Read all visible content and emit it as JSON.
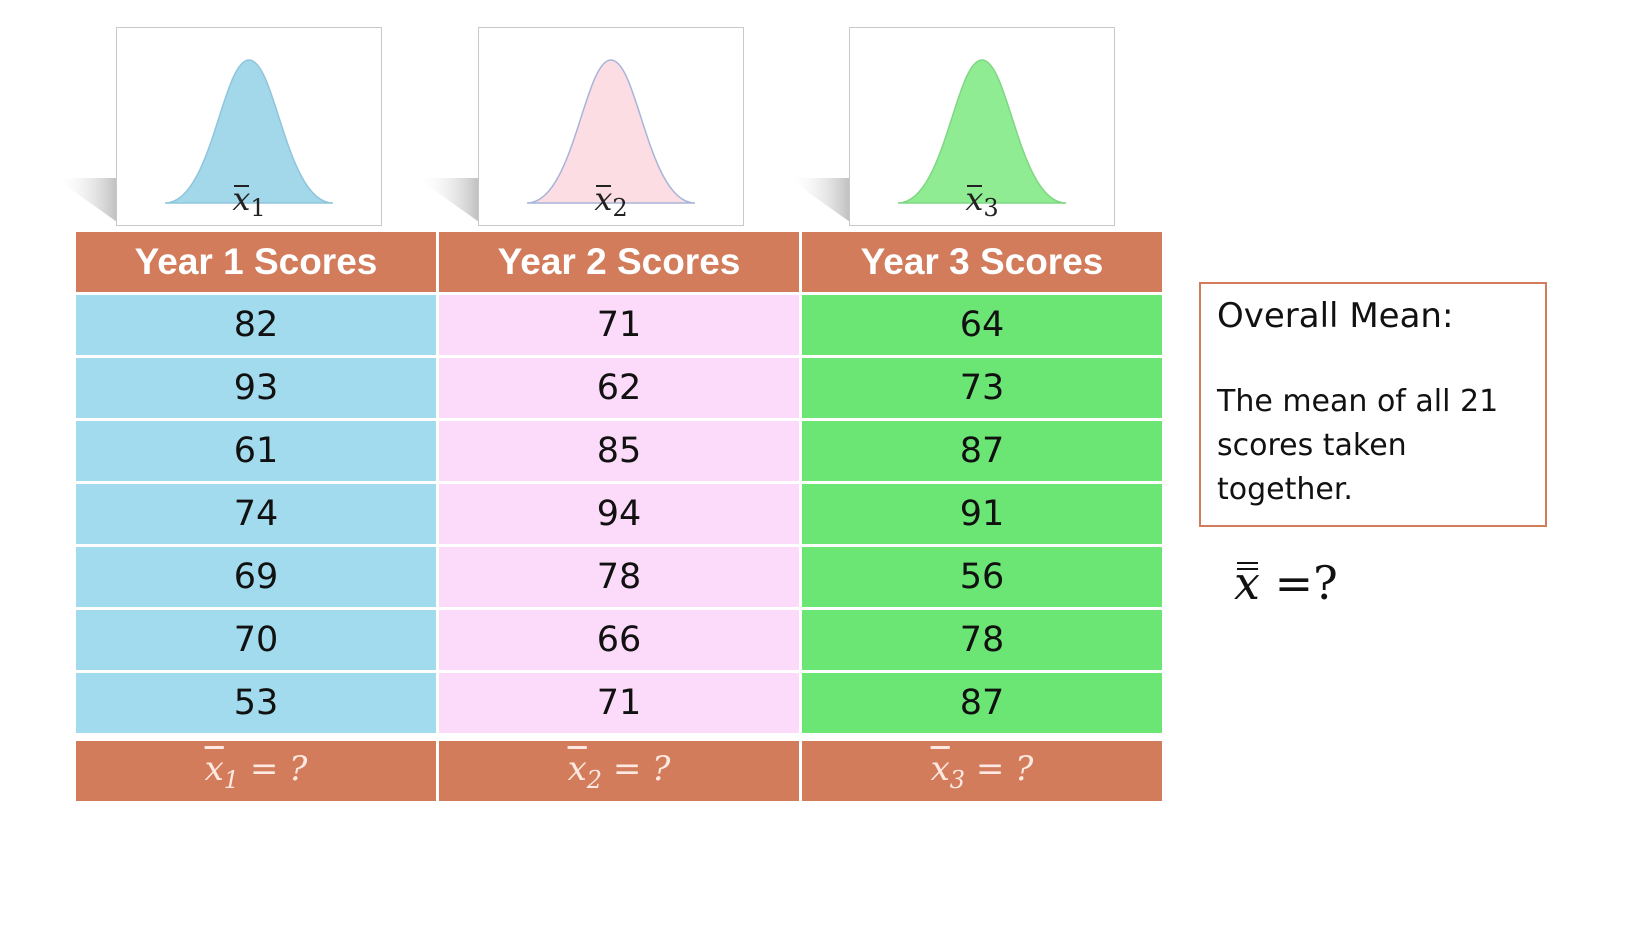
{
  "curves": [
    {
      "mean_var": "x",
      "subscript": "1",
      "fill": "#a3d8eb"
    },
    {
      "mean_var": "x",
      "subscript": "2",
      "fill": "#fcdde3"
    },
    {
      "mean_var": "x",
      "subscript": "3",
      "fill": "#90ec93"
    }
  ],
  "table": {
    "headers": [
      "Year 1 Scores",
      "Year 2 Scores",
      "Year 3 Scores"
    ],
    "rows": [
      [
        "82",
        "71",
        "64"
      ],
      [
        "93",
        "62",
        "73"
      ],
      [
        "61",
        "85",
        "87"
      ],
      [
        "74",
        "94",
        "91"
      ],
      [
        "69",
        "78",
        "56"
      ],
      [
        "70",
        "66",
        "78"
      ],
      [
        "53",
        "71",
        "87"
      ]
    ],
    "footer": [
      {
        "var": "x",
        "sub": "1",
        "rest": " = ?"
      },
      {
        "var": "x",
        "sub": "2",
        "rest": " = ?"
      },
      {
        "var": "x",
        "sub": "3",
        "rest": " = ?"
      }
    ]
  },
  "colors": {
    "header": "#d27c5b",
    "col1": "#a2dbee",
    "col2": "#fcdafa",
    "col3": "#6be674"
  },
  "overall": {
    "title": "Overall Mean:",
    "description": "The mean of all 21 scores taken together.",
    "formula_var": "x",
    "formula_rest": " =?"
  }
}
